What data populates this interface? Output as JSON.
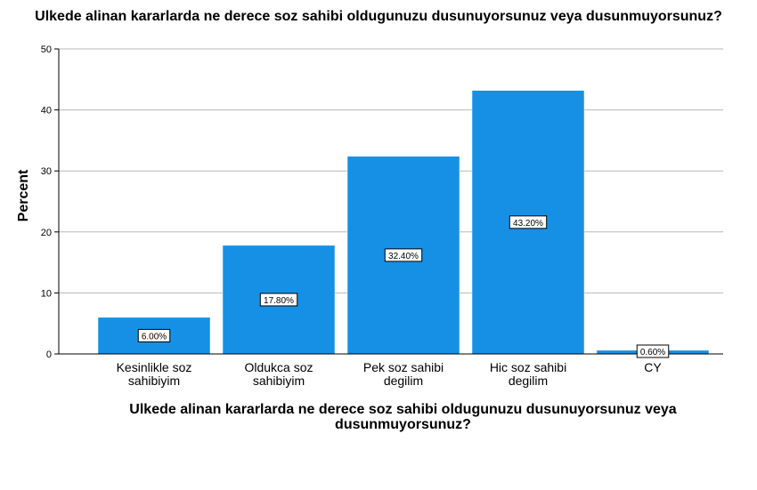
{
  "chart_data": {
    "type": "bar",
    "title": "Ulkede alinan kararlarda ne derece soz sahibi oldugunuzu dusunuyorsunuz veya dusunmuyorsunuz?",
    "xlabel": "Ulkede alinan kararlarda ne derece soz sahibi oldugunuzu dusunuyorsunuz veya dusunmuyorsunuz?",
    "ylabel": "Percent",
    "ylim": [
      0,
      50
    ],
    "yticks": [
      "0",
      "10",
      "20",
      "30",
      "40",
      "50"
    ],
    "grid": true,
    "categories": [
      [
        "Kesinlikle soz",
        "sahibiyim"
      ],
      [
        "Oldukca soz",
        "sahibiyim"
      ],
      [
        "Pek soz sahibi",
        "degilim"
      ],
      [
        "Hic soz sahibi",
        "degilim"
      ],
      [
        "CY"
      ]
    ],
    "values": [
      6.0,
      17.8,
      32.4,
      43.2,
      0.6
    ],
    "data_labels": [
      "6.00%",
      "17.80%",
      "32.40%",
      "43.20%",
      "0.60%"
    ],
    "bar_color": "#1690e4"
  }
}
